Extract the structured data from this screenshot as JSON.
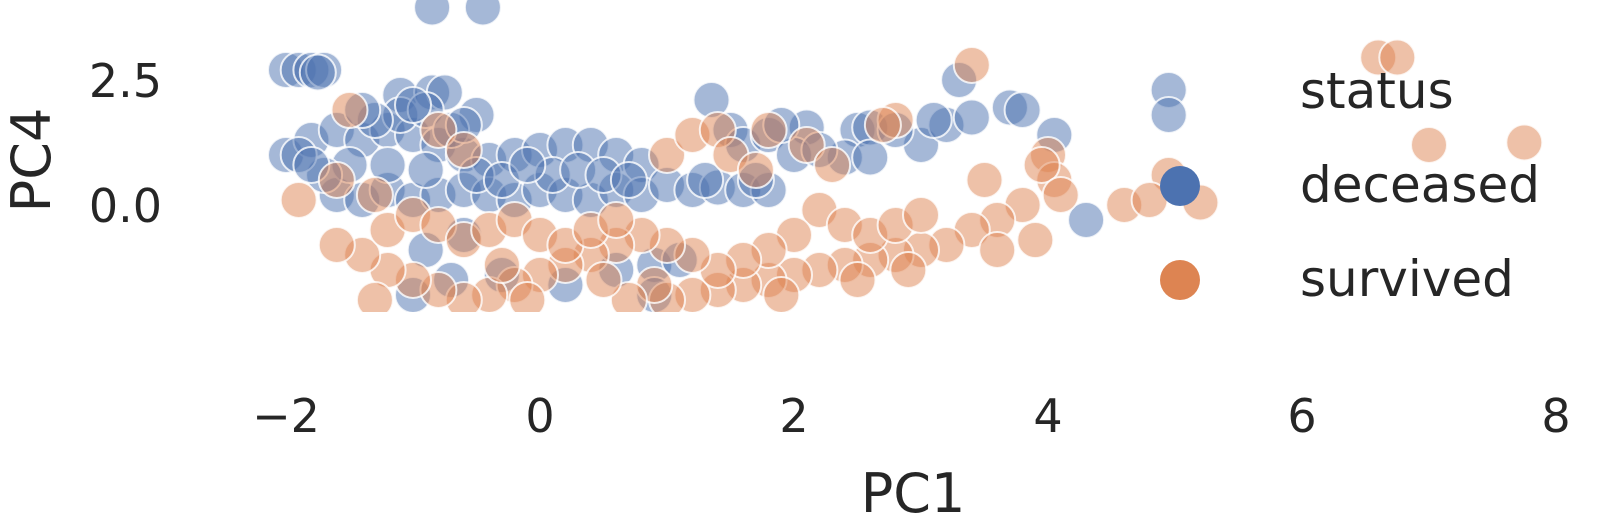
{
  "chart_data": {
    "type": "scatter",
    "xlabel": "PC1",
    "ylabel": "PC4",
    "xlim": [
      -2.5,
      8.0
    ],
    "ylim": [
      -2.0,
      4.0
    ],
    "x_ticks": [
      -2,
      0,
      2,
      4,
      6,
      8
    ],
    "x_tick_labels": [
      "−2",
      "0",
      "2",
      "4",
      "6",
      "8"
    ],
    "y_ticks": [
      0.0,
      2.5
    ],
    "y_tick_labels": [
      "0.0",
      "2.5"
    ],
    "grid": false,
    "legend": {
      "title": "status",
      "placement": "right",
      "entries": [
        "deceased",
        "survived"
      ]
    },
    "series": [
      {
        "name": "deceased",
        "color": "#4c72b0",
        "points": [
          [
            -2.0,
            2.7
          ],
          [
            -1.9,
            2.7
          ],
          [
            -1.8,
            2.7
          ],
          [
            -1.7,
            2.7
          ],
          [
            -1.75,
            2.65
          ],
          [
            -1.1,
            2.2
          ],
          [
            -0.85,
            2.25
          ],
          [
            -0.75,
            2.25
          ],
          [
            -0.85,
            3.95
          ],
          [
            -0.45,
            3.95
          ],
          [
            -0.5,
            1.8
          ],
          [
            1.35,
            2.1
          ],
          [
            3.3,
            2.5
          ],
          [
            3.7,
            1.95
          ],
          [
            3.8,
            1.9
          ],
          [
            4.05,
            1.4
          ],
          [
            4.95,
            2.3
          ],
          [
            4.95,
            1.8
          ],
          [
            4.3,
            -0.3
          ],
          [
            3.0,
            1.2
          ],
          [
            3.2,
            1.6
          ],
          [
            3.4,
            1.75
          ],
          [
            2.5,
            1.5
          ],
          [
            2.6,
            1.55
          ],
          [
            2.1,
            1.55
          ],
          [
            1.5,
            1.5
          ],
          [
            1.6,
            1.2
          ],
          [
            1.8,
            1.4
          ],
          [
            2.4,
            0.95
          ],
          [
            2.6,
            0.95
          ],
          [
            -2.0,
            1.0
          ],
          [
            -1.8,
            1.3
          ],
          [
            -1.6,
            1.5
          ],
          [
            -1.4,
            1.3
          ],
          [
            -1.2,
            1.5
          ],
          [
            -1.0,
            1.4
          ],
          [
            -0.8,
            1.2
          ],
          [
            -0.6,
            1.0
          ],
          [
            -0.4,
            0.9
          ],
          [
            -0.2,
            1.0
          ],
          [
            0.0,
            1.1
          ],
          [
            0.2,
            1.2
          ],
          [
            0.4,
            1.2
          ],
          [
            0.6,
            1.0
          ],
          [
            0.8,
            0.8
          ],
          [
            -1.6,
            0.2
          ],
          [
            -1.4,
            0.1
          ],
          [
            -1.2,
            0.3
          ],
          [
            -1.0,
            0.1
          ],
          [
            -0.8,
            0.2
          ],
          [
            -0.6,
            0.3
          ],
          [
            -0.4,
            0.2
          ],
          [
            -0.2,
            0.1
          ],
          [
            0.0,
            0.3
          ],
          [
            0.2,
            0.2
          ],
          [
            0.4,
            0.1
          ],
          [
            0.6,
            0.3
          ],
          [
            0.8,
            0.2
          ],
          [
            1.0,
            0.4
          ],
          [
            1.2,
            0.3
          ],
          [
            1.4,
            0.35
          ],
          [
            1.6,
            0.3
          ],
          [
            1.8,
            0.3
          ],
          [
            1.3,
            0.5
          ],
          [
            1.7,
            0.5
          ],
          [
            -1.1,
            1.8
          ],
          [
            -0.9,
            1.9
          ],
          [
            -1.3,
            1.7
          ],
          [
            -0.7,
            1.5
          ],
          [
            -1.5,
            0.8
          ],
          [
            -1.2,
            0.8
          ],
          [
            -0.9,
            0.7
          ],
          [
            -0.5,
            0.6
          ],
          [
            -0.3,
            0.5
          ],
          [
            0.1,
            0.6
          ],
          [
            0.3,
            0.7
          ],
          [
            0.5,
            0.6
          ],
          [
            0.7,
            0.5
          ],
          [
            -0.1,
            0.8
          ],
          [
            -1.7,
            0.6
          ],
          [
            -0.9,
            -0.9
          ],
          [
            -0.6,
            -0.6
          ],
          [
            -0.7,
            -1.5
          ],
          [
            -1.0,
            -1.8
          ],
          [
            0.6,
            -1.3
          ],
          [
            0.9,
            -1.2
          ],
          [
            1.1,
            -1.1
          ],
          [
            0.2,
            -1.6
          ],
          [
            -0.3,
            -1.4
          ],
          [
            0.9,
            -1.8
          ],
          [
            -1.9,
            1.0
          ],
          [
            -1.8,
            0.8
          ],
          [
            -1.4,
            1.9
          ],
          [
            -1.0,
            2.0
          ],
          [
            -0.6,
            1.6
          ],
          [
            2.0,
            1.0
          ],
          [
            2.2,
            1.1
          ],
          [
            2.8,
            1.5
          ],
          [
            3.1,
            1.7
          ],
          [
            1.9,
            1.6
          ]
        ]
      },
      {
        "name": "survived",
        "color": "#dd8452",
        "points": [
          [
            6.6,
            2.95
          ],
          [
            6.75,
            2.95
          ],
          [
            7.0,
            1.2
          ],
          [
            7.75,
            1.25
          ],
          [
            4.95,
            0.6
          ],
          [
            5.2,
            0.05
          ],
          [
            4.6,
            0.0
          ],
          [
            4.8,
            0.1
          ],
          [
            3.4,
            2.8
          ],
          [
            2.8,
            1.7
          ],
          [
            4.0,
            1.0
          ],
          [
            4.05,
            0.5
          ],
          [
            3.95,
            0.8
          ],
          [
            4.1,
            0.2
          ],
          [
            3.5,
            0.5
          ],
          [
            3.8,
            0.0
          ],
          [
            3.6,
            -0.3
          ],
          [
            3.4,
            -0.5
          ],
          [
            3.2,
            -0.8
          ],
          [
            3.0,
            -0.9
          ],
          [
            2.8,
            -1.0
          ],
          [
            2.6,
            -1.1
          ],
          [
            2.4,
            -1.2
          ],
          [
            2.2,
            -1.3
          ],
          [
            2.0,
            -1.4
          ],
          [
            1.8,
            -1.5
          ],
          [
            1.6,
            -1.6
          ],
          [
            1.4,
            -1.7
          ],
          [
            1.2,
            -1.8
          ],
          [
            1.0,
            -1.9
          ],
          [
            2.2,
            -0.1
          ],
          [
            2.4,
            -0.4
          ],
          [
            2.6,
            -0.6
          ],
          [
            2.8,
            -0.4
          ],
          [
            3.0,
            -0.2
          ],
          [
            2.0,
            -0.6
          ],
          [
            1.8,
            -0.9
          ],
          [
            1.6,
            -1.1
          ],
          [
            1.4,
            -1.3
          ],
          [
            1.2,
            -1.0
          ],
          [
            1.0,
            -0.8
          ],
          [
            0.8,
            -0.6
          ],
          [
            0.6,
            -0.8
          ],
          [
            0.4,
            -1.0
          ],
          [
            0.2,
            -1.2
          ],
          [
            0.0,
            -1.4
          ],
          [
            -0.2,
            -1.6
          ],
          [
            -0.4,
            -1.8
          ],
          [
            -0.6,
            -1.9
          ],
          [
            -0.8,
            -1.7
          ],
          [
            -1.0,
            -1.5
          ],
          [
            -1.2,
            -1.3
          ],
          [
            -1.4,
            -1.0
          ],
          [
            -1.6,
            -0.8
          ],
          [
            -1.3,
            -1.9
          ],
          [
            -1.2,
            -0.5
          ],
          [
            -1.0,
            -0.2
          ],
          [
            -0.8,
            -0.4
          ],
          [
            -0.6,
            -0.7
          ],
          [
            -0.4,
            -0.5
          ],
          [
            -0.2,
            -0.3
          ],
          [
            0.0,
            -0.6
          ],
          [
            0.2,
            -0.8
          ],
          [
            0.4,
            -0.5
          ],
          [
            0.6,
            -0.3
          ],
          [
            -1.9,
            0.1
          ],
          [
            -1.6,
            0.5
          ],
          [
            -1.3,
            0.2
          ],
          [
            -1.5,
            1.9
          ],
          [
            -0.8,
            1.5
          ],
          [
            -0.6,
            1.1
          ],
          [
            1.0,
            1.0
          ],
          [
            1.2,
            1.4
          ],
          [
            1.4,
            1.5
          ],
          [
            1.8,
            1.5
          ],
          [
            1.5,
            1.0
          ],
          [
            1.7,
            0.7
          ],
          [
            2.1,
            1.2
          ],
          [
            2.3,
            0.8
          ],
          [
            2.7,
            1.6
          ],
          [
            3.6,
            -0.9
          ],
          [
            3.9,
            -0.7
          ],
          [
            2.5,
            -1.5
          ],
          [
            2.9,
            -1.3
          ],
          [
            1.9,
            -1.8
          ],
          [
            0.9,
            -1.6
          ],
          [
            0.7,
            -1.9
          ],
          [
            -0.1,
            -1.9
          ],
          [
            0.5,
            -1.5
          ],
          [
            -0.3,
            -1.2
          ]
        ]
      }
    ]
  }
}
